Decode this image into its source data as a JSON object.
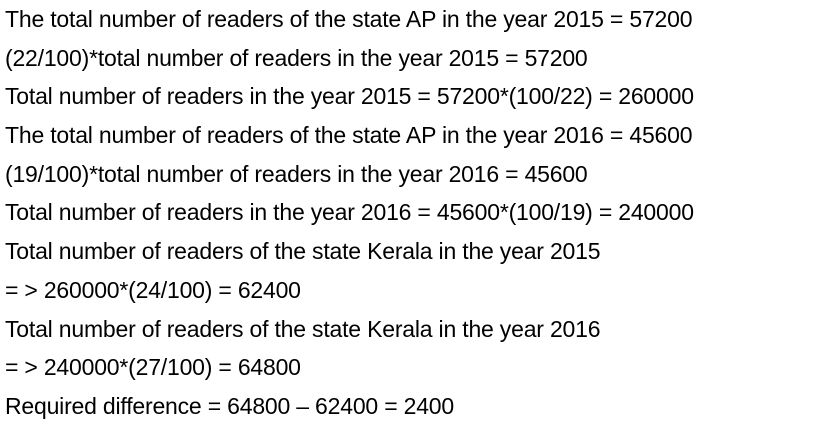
{
  "lines": [
    "The total number of readers of the state AP in the year 2015 = 57200",
    "(22/100)*total number of readers in the year 2015 = 57200",
    "Total number of readers in the year 2015 = 57200*(100/22) = 260000",
    "The total number of readers of the state AP in the year 2016 = 45600",
    "(19/100)*total number of readers in the year 2016 = 45600",
    "Total number of readers in the year 2016 = 45600*(100/19) = 240000",
    "Total number of readers of the state Kerala in the year 2015",
    "= > 260000*(24/100) = 62400",
    "Total number of readers of the state Kerala in the year 2016",
    "= > 240000*(27/100) = 64800",
    "Required difference = 64800 – 62400 = 2400"
  ]
}
